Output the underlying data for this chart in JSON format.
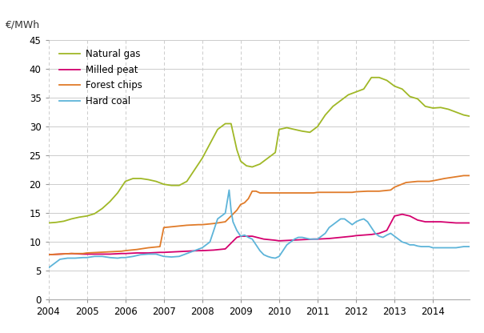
{
  "ylabel": "€/MWh",
  "ylim": [
    0,
    45
  ],
  "yticks": [
    0,
    5,
    10,
    15,
    20,
    25,
    30,
    35,
    40,
    45
  ],
  "xlim_start": 2004.0,
  "xlim_end": 2014.95,
  "xtick_years": [
    2004,
    2005,
    2006,
    2007,
    2008,
    2009,
    2010,
    2011,
    2012,
    2013,
    2014
  ],
  "background_color": "#ffffff",
  "grid_color": "#cccccc",
  "series": {
    "natural_gas": {
      "color": "#a0b826",
      "label": "Natural gas",
      "data": [
        [
          2004.0,
          13.3
        ],
        [
          2004.2,
          13.4
        ],
        [
          2004.4,
          13.6
        ],
        [
          2004.6,
          14.0
        ],
        [
          2004.8,
          14.3
        ],
        [
          2005.0,
          14.5
        ],
        [
          2005.2,
          14.9
        ],
        [
          2005.4,
          15.8
        ],
        [
          2005.6,
          17.0
        ],
        [
          2005.8,
          18.5
        ],
        [
          2006.0,
          20.5
        ],
        [
          2006.2,
          21.0
        ],
        [
          2006.4,
          21.0
        ],
        [
          2006.6,
          20.8
        ],
        [
          2006.8,
          20.5
        ],
        [
          2007.0,
          20.0
        ],
        [
          2007.2,
          19.8
        ],
        [
          2007.4,
          19.8
        ],
        [
          2007.6,
          20.5
        ],
        [
          2007.8,
          22.5
        ],
        [
          2008.0,
          24.5
        ],
        [
          2008.2,
          27.0
        ],
        [
          2008.4,
          29.5
        ],
        [
          2008.6,
          30.5
        ],
        [
          2008.75,
          30.5
        ],
        [
          2008.9,
          26.0
        ],
        [
          2009.0,
          24.0
        ],
        [
          2009.15,
          23.2
        ],
        [
          2009.3,
          23.0
        ],
        [
          2009.5,
          23.5
        ],
        [
          2009.7,
          24.5
        ],
        [
          2009.9,
          25.5
        ],
        [
          2010.0,
          29.5
        ],
        [
          2010.2,
          29.8
        ],
        [
          2010.4,
          29.5
        ],
        [
          2010.6,
          29.2
        ],
        [
          2010.8,
          29.0
        ],
        [
          2011.0,
          30.0
        ],
        [
          2011.2,
          32.0
        ],
        [
          2011.4,
          33.5
        ],
        [
          2011.6,
          34.5
        ],
        [
          2011.8,
          35.5
        ],
        [
          2012.0,
          36.0
        ],
        [
          2012.2,
          36.5
        ],
        [
          2012.4,
          38.5
        ],
        [
          2012.6,
          38.5
        ],
        [
          2012.8,
          38.0
        ],
        [
          2013.0,
          37.0
        ],
        [
          2013.2,
          36.5
        ],
        [
          2013.4,
          35.2
        ],
        [
          2013.6,
          34.8
        ],
        [
          2013.8,
          33.5
        ],
        [
          2014.0,
          33.2
        ],
        [
          2014.2,
          33.3
        ],
        [
          2014.4,
          33.0
        ],
        [
          2014.6,
          32.5
        ],
        [
          2014.8,
          32.0
        ],
        [
          2014.95,
          31.8
        ]
      ]
    },
    "milled_peat": {
      "color": "#d4006e",
      "label": "Milled peat",
      "data": [
        [
          2004.0,
          7.8
        ],
        [
          2004.3,
          7.9
        ],
        [
          2004.6,
          8.0
        ],
        [
          2004.9,
          7.9
        ],
        [
          2005.0,
          7.9
        ],
        [
          2005.3,
          7.9
        ],
        [
          2005.6,
          7.9
        ],
        [
          2005.9,
          8.0
        ],
        [
          2006.0,
          8.0
        ],
        [
          2006.3,
          8.1
        ],
        [
          2006.6,
          8.1
        ],
        [
          2006.9,
          8.2
        ],
        [
          2007.0,
          8.2
        ],
        [
          2007.3,
          8.3
        ],
        [
          2007.6,
          8.4
        ],
        [
          2007.9,
          8.5
        ],
        [
          2008.0,
          8.5
        ],
        [
          2008.3,
          8.6
        ],
        [
          2008.6,
          8.8
        ],
        [
          2008.9,
          10.8
        ],
        [
          2009.0,
          11.0
        ],
        [
          2009.3,
          11.0
        ],
        [
          2009.6,
          10.5
        ],
        [
          2009.9,
          10.3
        ],
        [
          2010.0,
          10.2
        ],
        [
          2010.3,
          10.3
        ],
        [
          2010.6,
          10.4
        ],
        [
          2010.9,
          10.5
        ],
        [
          2011.0,
          10.5
        ],
        [
          2011.3,
          10.6
        ],
        [
          2011.6,
          10.8
        ],
        [
          2011.9,
          11.0
        ],
        [
          2012.0,
          11.1
        ],
        [
          2012.2,
          11.2
        ],
        [
          2012.4,
          11.3
        ],
        [
          2012.6,
          11.5
        ],
        [
          2012.8,
          12.0
        ],
        [
          2013.0,
          14.5
        ],
        [
          2013.2,
          14.8
        ],
        [
          2013.4,
          14.5
        ],
        [
          2013.6,
          13.8
        ],
        [
          2013.8,
          13.5
        ],
        [
          2014.0,
          13.5
        ],
        [
          2014.2,
          13.5
        ],
        [
          2014.4,
          13.4
        ],
        [
          2014.6,
          13.3
        ],
        [
          2014.8,
          13.3
        ],
        [
          2014.95,
          13.3
        ]
      ]
    },
    "forest_chips": {
      "color": "#e07b29",
      "label": "Forest chips",
      "data": [
        [
          2004.0,
          7.8
        ],
        [
          2004.3,
          7.9
        ],
        [
          2004.6,
          8.0
        ],
        [
          2004.9,
          8.0
        ],
        [
          2005.0,
          8.1
        ],
        [
          2005.3,
          8.2
        ],
        [
          2005.6,
          8.3
        ],
        [
          2005.9,
          8.4
        ],
        [
          2006.0,
          8.5
        ],
        [
          2006.3,
          8.7
        ],
        [
          2006.6,
          9.0
        ],
        [
          2006.9,
          9.2
        ],
        [
          2007.0,
          12.5
        ],
        [
          2007.3,
          12.7
        ],
        [
          2007.6,
          12.9
        ],
        [
          2007.9,
          13.0
        ],
        [
          2008.0,
          13.0
        ],
        [
          2008.3,
          13.2
        ],
        [
          2008.6,
          13.5
        ],
        [
          2008.9,
          15.5
        ],
        [
          2009.0,
          16.5
        ],
        [
          2009.1,
          16.8
        ],
        [
          2009.2,
          17.5
        ],
        [
          2009.3,
          18.8
        ],
        [
          2009.4,
          18.8
        ],
        [
          2009.5,
          18.5
        ],
        [
          2009.6,
          18.5
        ],
        [
          2009.8,
          18.5
        ],
        [
          2010.0,
          18.5
        ],
        [
          2010.3,
          18.5
        ],
        [
          2010.6,
          18.5
        ],
        [
          2010.9,
          18.5
        ],
        [
          2011.0,
          18.6
        ],
        [
          2011.3,
          18.6
        ],
        [
          2011.6,
          18.6
        ],
        [
          2011.9,
          18.6
        ],
        [
          2012.0,
          18.7
        ],
        [
          2012.3,
          18.8
        ],
        [
          2012.6,
          18.8
        ],
        [
          2012.9,
          19.0
        ],
        [
          2013.0,
          19.5
        ],
        [
          2013.3,
          20.3
        ],
        [
          2013.6,
          20.5
        ],
        [
          2013.9,
          20.5
        ],
        [
          2014.0,
          20.6
        ],
        [
          2014.3,
          21.0
        ],
        [
          2014.6,
          21.3
        ],
        [
          2014.8,
          21.5
        ],
        [
          2014.95,
          21.5
        ]
      ]
    },
    "hard_coal": {
      "color": "#5db4d9",
      "label": "Hard coal",
      "data": [
        [
          2004.0,
          5.5
        ],
        [
          2004.1,
          6.0
        ],
        [
          2004.3,
          7.0
        ],
        [
          2004.5,
          7.2
        ],
        [
          2004.7,
          7.2
        ],
        [
          2004.9,
          7.3
        ],
        [
          2005.0,
          7.3
        ],
        [
          2005.2,
          7.5
        ],
        [
          2005.4,
          7.5
        ],
        [
          2005.6,
          7.3
        ],
        [
          2005.8,
          7.2
        ],
        [
          2005.9,
          7.3
        ],
        [
          2006.0,
          7.3
        ],
        [
          2006.2,
          7.5
        ],
        [
          2006.4,
          7.8
        ],
        [
          2006.6,
          7.9
        ],
        [
          2006.8,
          7.9
        ],
        [
          2007.0,
          7.5
        ],
        [
          2007.2,
          7.4
        ],
        [
          2007.4,
          7.5
        ],
        [
          2007.6,
          8.0
        ],
        [
          2007.8,
          8.5
        ],
        [
          2008.0,
          9.0
        ],
        [
          2008.2,
          10.0
        ],
        [
          2008.4,
          14.0
        ],
        [
          2008.6,
          15.0
        ],
        [
          2008.7,
          19.0
        ],
        [
          2008.75,
          15.5
        ],
        [
          2008.8,
          13.5
        ],
        [
          2008.9,
          12.0
        ],
        [
          2009.0,
          11.0
        ],
        [
          2009.1,
          11.2
        ],
        [
          2009.2,
          10.8
        ],
        [
          2009.3,
          10.5
        ],
        [
          2009.4,
          9.5
        ],
        [
          2009.5,
          8.5
        ],
        [
          2009.6,
          7.8
        ],
        [
          2009.7,
          7.5
        ],
        [
          2009.8,
          7.3
        ],
        [
          2009.9,
          7.2
        ],
        [
          2010.0,
          7.5
        ],
        [
          2010.1,
          8.5
        ],
        [
          2010.2,
          9.5
        ],
        [
          2010.3,
          10.0
        ],
        [
          2010.4,
          10.5
        ],
        [
          2010.5,
          10.8
        ],
        [
          2010.6,
          10.8
        ],
        [
          2010.8,
          10.5
        ],
        [
          2011.0,
          10.5
        ],
        [
          2011.1,
          11.0
        ],
        [
          2011.2,
          11.5
        ],
        [
          2011.3,
          12.5
        ],
        [
          2011.4,
          13.0
        ],
        [
          2011.5,
          13.5
        ],
        [
          2011.6,
          14.0
        ],
        [
          2011.7,
          14.0
        ],
        [
          2011.8,
          13.5
        ],
        [
          2011.9,
          13.0
        ],
        [
          2012.0,
          13.5
        ],
        [
          2012.1,
          13.8
        ],
        [
          2012.2,
          14.0
        ],
        [
          2012.3,
          13.5
        ],
        [
          2012.4,
          12.5
        ],
        [
          2012.5,
          11.5
        ],
        [
          2012.6,
          11.0
        ],
        [
          2012.7,
          10.8
        ],
        [
          2012.8,
          11.2
        ],
        [
          2012.9,
          11.5
        ],
        [
          2013.0,
          11.0
        ],
        [
          2013.1,
          10.5
        ],
        [
          2013.2,
          10.0
        ],
        [
          2013.3,
          9.8
        ],
        [
          2013.4,
          9.5
        ],
        [
          2013.5,
          9.5
        ],
        [
          2013.6,
          9.3
        ],
        [
          2013.7,
          9.2
        ],
        [
          2013.8,
          9.2
        ],
        [
          2013.9,
          9.2
        ],
        [
          2014.0,
          9.0
        ],
        [
          2014.2,
          9.0
        ],
        [
          2014.4,
          9.0
        ],
        [
          2014.6,
          9.0
        ],
        [
          2014.8,
          9.2
        ],
        [
          2014.95,
          9.2
        ]
      ]
    }
  }
}
